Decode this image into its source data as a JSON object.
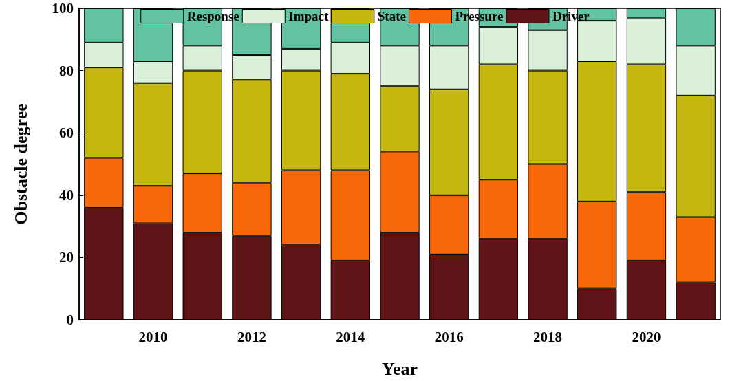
{
  "chart_data": {
    "type": "bar",
    "stacked": true,
    "xlabel": "Year",
    "ylabel": "Obstacle degree",
    "categories": [
      null,
      "2010",
      null,
      "2012",
      null,
      "2014",
      null,
      "2016",
      null,
      "2018",
      null,
      "2020",
      null
    ],
    "series": [
      {
        "name": "Driver",
        "color": "#5e1416",
        "values": [
          36,
          31,
          28,
          27,
          24,
          19,
          28,
          21,
          26,
          26,
          10,
          19,
          12
        ]
      },
      {
        "name": "Pressure",
        "color": "#f86808",
        "values": [
          16,
          12,
          19,
          17,
          24,
          29,
          26,
          19,
          19,
          24,
          28,
          22,
          21
        ]
      },
      {
        "name": "State",
        "color": "#c6b811",
        "values": [
          29,
          33,
          33,
          33,
          32,
          31,
          21,
          34,
          37,
          30,
          45,
          41,
          39
        ]
      },
      {
        "name": "Impact",
        "color": "#daf0d8",
        "values": [
          8,
          7,
          8,
          8,
          7,
          10,
          13,
          14,
          12,
          13,
          13,
          15,
          16
        ]
      },
      {
        "name": "Response",
        "color": "#63c3a0",
        "values": [
          11,
          17,
          12,
          15,
          13,
          11,
          12,
          12,
          6,
          7,
          4,
          3,
          12
        ]
      }
    ],
    "ylim": [
      0,
      100
    ],
    "yticks": [
      0,
      20,
      40,
      60,
      80,
      100
    ],
    "grid": false,
    "legend": "top"
  }
}
